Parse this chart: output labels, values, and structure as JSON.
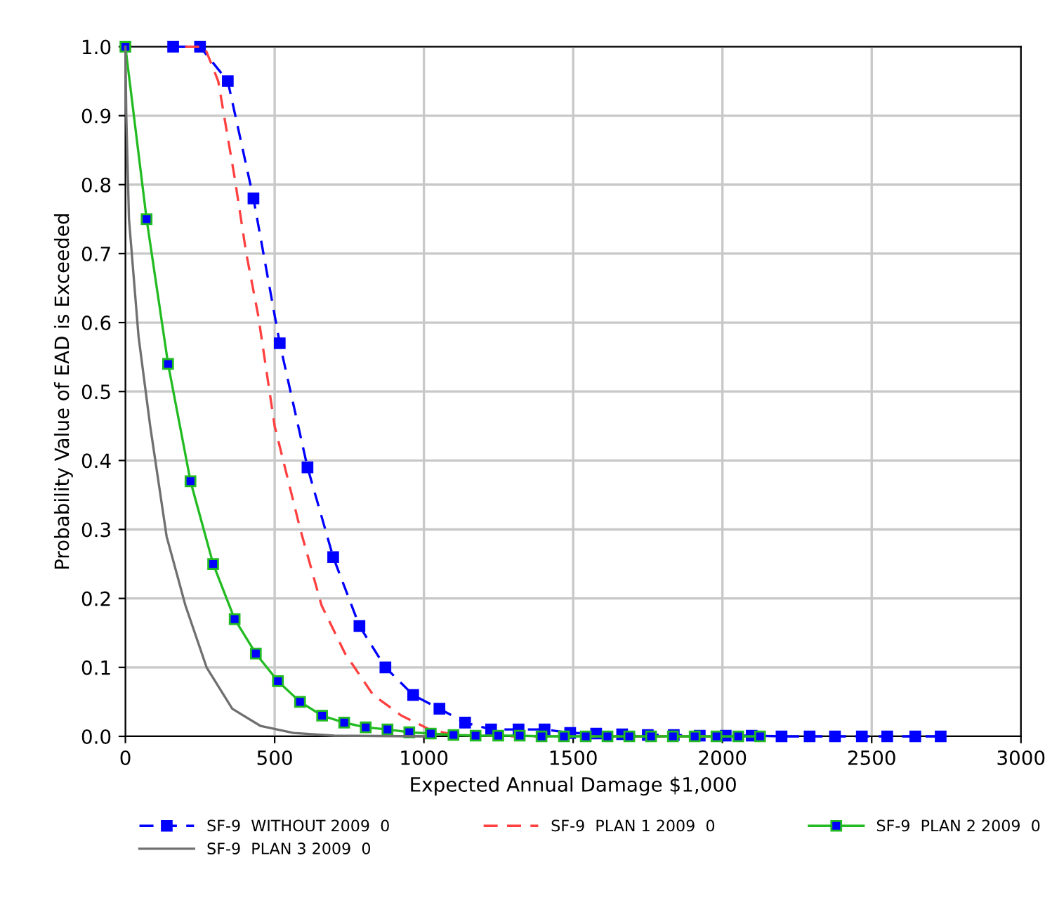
{
  "chart_data": {
    "type": "line",
    "xlabel": "Expected Annual Damage $1,000",
    "ylabel": "Probability Value of EAD is Exceeded",
    "xlim": [
      0,
      3000
    ],
    "ylim": [
      0,
      1.0
    ],
    "xticks": [
      0,
      500,
      1000,
      1500,
      2000,
      2500,
      3000
    ],
    "yticks": [
      {
        "value": 0,
        "label": "0.0"
      },
      0.1,
      0.2,
      0.3,
      0.4,
      0.5,
      0.6,
      0.7,
      0.8,
      0.9,
      {
        "value": 1,
        "label": "1.0"
      }
    ],
    "grid": true,
    "legend": "bottom",
    "series": [
      {
        "name": "SF-9  WITHOUT 2009  0",
        "color": "#0000ff",
        "line_style": "dashed",
        "marker": "square",
        "x": [
          160,
          250,
          343,
          429,
          517,
          610,
          696,
          784,
          871,
          964,
          1052,
          1138,
          1225,
          1317,
          1404,
          1490,
          1577,
          1664,
          1750,
          1837,
          1924,
          2011,
          2098,
          2198,
          2292,
          2377,
          2467,
          2552,
          2646,
          2731
        ],
        "values": [
          1.0,
          1.0,
          0.95,
          0.78,
          0.57,
          0.39,
          0.26,
          0.16,
          0.1,
          0.06,
          0.04,
          0.02,
          0.01,
          0.01,
          0.01,
          0.005,
          0.004,
          0.003,
          0.002,
          0.002,
          0.001,
          0.001,
          0.001,
          0,
          0,
          0,
          0,
          0,
          0,
          0
        ]
      },
      {
        "name": "SF-9  PLAN 1 2009  0",
        "color": "#ff4040",
        "line_style": "dashed",
        "marker": "none",
        "x": [
          200,
          265,
          311,
          366,
          405,
          445,
          500,
          586,
          657,
          736,
          830,
          925,
          1019,
          1104,
          1300,
          2000
        ],
        "values": [
          1.0,
          1.0,
          0.95,
          0.81,
          0.7,
          0.61,
          0.45,
          0.3,
          0.19,
          0.12,
          0.06,
          0.03,
          0.01,
          0.002,
          0,
          0
        ]
      },
      {
        "name": "SF-9  PLAN 2 2009  0",
        "color": "#22bb22",
        "line_style": "solid",
        "marker": "square",
        "x": [
          0,
          71,
          143,
          218,
          294,
          366,
          437,
          511,
          585,
          659,
          733,
          805,
          878,
          951,
          1023,
          1099,
          1173,
          1249,
          1321,
          1394,
          1469,
          1542,
          1615,
          1688,
          1761,
          1834,
          1907,
          1980,
          2053,
          2126
        ],
        "values": [
          1.0,
          0.75,
          0.54,
          0.37,
          0.25,
          0.17,
          0.12,
          0.08,
          0.05,
          0.03,
          0.02,
          0.013,
          0.01,
          0.006,
          0.004,
          0.002,
          0.001,
          0.001,
          0.001,
          0,
          0,
          0,
          0,
          0,
          0,
          0,
          0,
          0,
          0,
          0
        ]
      },
      {
        "name": "SF-9  PLAN 3 2009  0",
        "color": "#707070",
        "line_style": "solid",
        "marker": "none",
        "x": [
          0,
          3,
          12,
          44,
          83,
          138,
          201,
          272,
          358,
          453,
          563,
          700,
          1000
        ],
        "values": [
          1.0,
          0.9,
          0.75,
          0.58,
          0.45,
          0.29,
          0.19,
          0.1,
          0.04,
          0.015,
          0.005,
          0.001,
          0
        ]
      }
    ]
  }
}
